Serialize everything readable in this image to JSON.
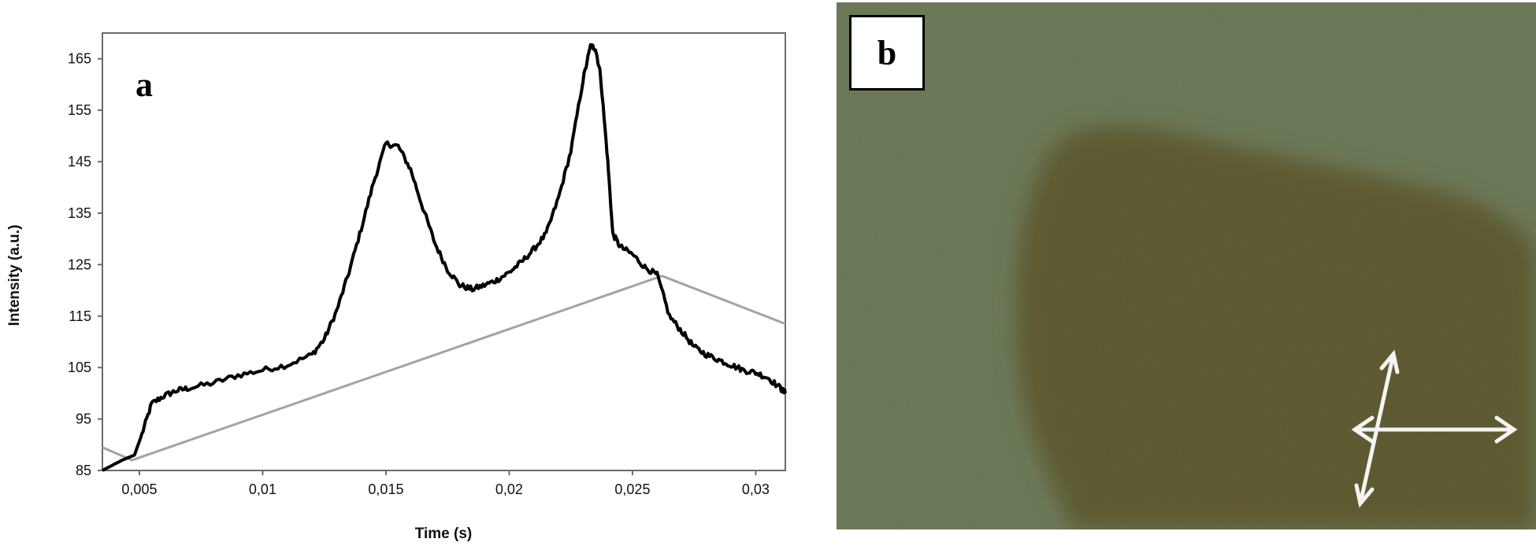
{
  "panel_a_label": "a",
  "panel_b_label": "b",
  "colors": {
    "trace": "#000000",
    "baseline": "#a3a3a3",
    "photo_bg": "#6e7c5b",
    "photo_spot": "#605c33"
  },
  "chart_data": {
    "type": "line",
    "title": "",
    "xlabel": "Time (s)",
    "ylabel": "Intensity (a.u.)",
    "xlim": [
      0.0035,
      0.0312
    ],
    "ylim": [
      85,
      170
    ],
    "x_ticks": [
      "0,005",
      "0,01",
      "0,015",
      "0,02",
      "0,025",
      "0,03"
    ],
    "x_tick_values": [
      0.005,
      0.01,
      0.015,
      0.02,
      0.025,
      0.03
    ],
    "y_ticks": [
      "85",
      "95",
      "105",
      "115",
      "125",
      "135",
      "145",
      "155",
      "165"
    ],
    "y_tick_values": [
      85,
      95,
      105,
      115,
      125,
      135,
      145,
      155,
      165
    ],
    "grid": false,
    "legend": "none",
    "series": [
      {
        "x": [
          0.0035,
          0.0043,
          0.0048,
          0.0051,
          0.0055,
          0.006,
          0.0065,
          0.007,
          0.008,
          0.009,
          0.01,
          0.011,
          0.012,
          0.0125,
          0.013,
          0.0135,
          0.014,
          0.0145,
          0.015,
          0.0155,
          0.016,
          0.0165,
          0.017,
          0.0175,
          0.018,
          0.0185,
          0.019,
          0.0195,
          0.02,
          0.0205,
          0.021,
          0.0215,
          0.022,
          0.0225,
          0.023,
          0.0233,
          0.0235,
          0.0237,
          0.024,
          0.0242,
          0.0245,
          0.025,
          0.0255,
          0.026,
          0.0265,
          0.027,
          0.0275,
          0.028,
          0.0285,
          0.029,
          0.0295,
          0.03,
          0.0305,
          0.031,
          0.0312
        ],
        "y": [
          85,
          87,
          88,
          92,
          98,
          99.5,
          100.5,
          101,
          102,
          103.5,
          104.5,
          105.5,
          107.5,
          110.5,
          116,
          123.5,
          132,
          141,
          148.5,
          148,
          143.5,
          136,
          129,
          124,
          121,
          120.2,
          121,
          122,
          123.5,
          125.5,
          128,
          131,
          138,
          147,
          161,
          167.5,
          167,
          162,
          145,
          131,
          128.5,
          127,
          124.5,
          123,
          115,
          112,
          109,
          107.5,
          106.5,
          105.5,
          104.5,
          104,
          103,
          101,
          100
        ]
      },
      {
        "x": [
          0.0035,
          0.0047,
          0.0262,
          0.0312
        ],
        "y": [
          89.5,
          87,
          122.8,
          113.5
        ]
      }
    ]
  }
}
